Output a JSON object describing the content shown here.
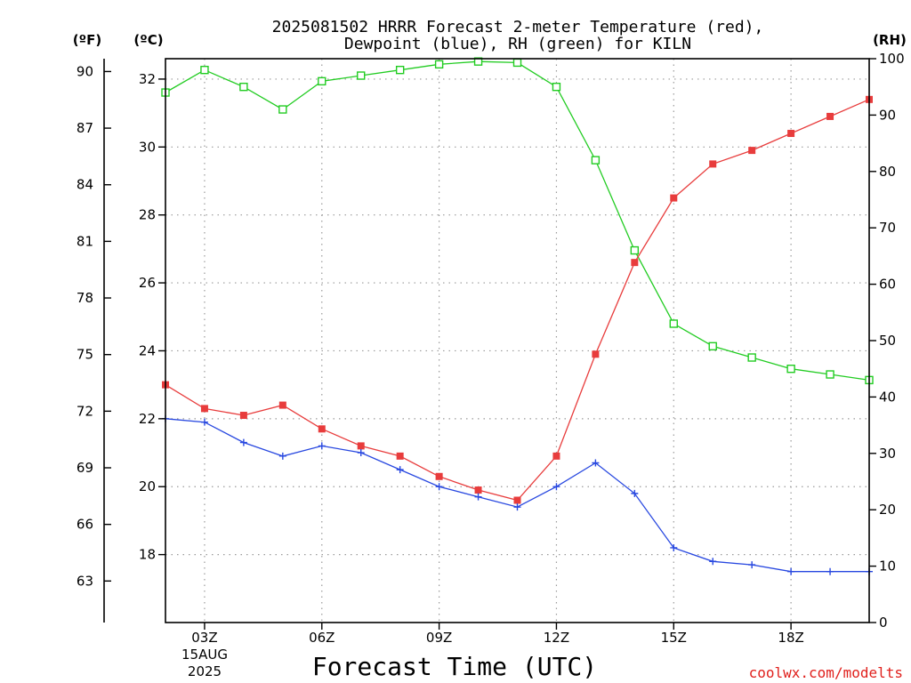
{
  "title_line1": "2025081502 HRRR Forecast 2-meter Temperature (red),",
  "title_line2": "Dewpoint (blue), RH (green) for KILN",
  "unit_f": "(ºF)",
  "unit_c": "(ºC)",
  "unit_rh": "(RH)",
  "date_label": "15AUG",
  "year_label": "2025",
  "credit": "coolwx.com/modelts",
  "colors": {
    "temperature": "#e83c3c",
    "dewpoint": "#2848e0",
    "rh": "#22cc22",
    "grid": "#9a9a9a"
  },
  "chart_data": {
    "type": "line",
    "title": "2025081502 HRRR Forecast 2-meter Temperature (red), Dewpoint (blue), RH (green) for KILN",
    "xlabel": "Forecast Time (UTC)",
    "x_hours": [
      2,
      3,
      4,
      5,
      6,
      7,
      8,
      9,
      10,
      11,
      12,
      13,
      14,
      15,
      16,
      17,
      18,
      19,
      20
    ],
    "x_ticks": [
      {
        "hour": 3,
        "label": "03Z"
      },
      {
        "hour": 6,
        "label": "06Z"
      },
      {
        "hour": 9,
        "label": "09Z"
      },
      {
        "hour": 12,
        "label": "12Z"
      },
      {
        "hour": 15,
        "label": "15Z"
      },
      {
        "hour": 18,
        "label": "18Z"
      }
    ],
    "xlim": [
      2,
      20
    ],
    "y_left_c": {
      "ticks": [
        18,
        20,
        22,
        24,
        26,
        28,
        30,
        32
      ],
      "lim": [
        16.0,
        32.6
      ]
    },
    "y_left_f": {
      "ticks": [
        63,
        66,
        69,
        72,
        75,
        78,
        81,
        84,
        87,
        90
      ]
    },
    "y_right_rh": {
      "ticks": [
        0,
        10,
        20,
        30,
        40,
        50,
        60,
        70,
        80,
        90,
        100
      ],
      "lim": [
        0,
        100
      ]
    },
    "grid": true,
    "series": [
      {
        "name": "Temperature",
        "units": "C",
        "marker": "filled-square",
        "values": [
          23.0,
          22.3,
          22.1,
          22.4,
          21.7,
          21.2,
          20.9,
          20.3,
          19.9,
          19.6,
          20.9,
          23.9,
          26.6,
          28.5,
          29.5,
          29.9,
          30.4,
          30.9,
          31.4
        ]
      },
      {
        "name": "Dewpoint",
        "units": "C",
        "marker": "plus",
        "values": [
          22.0,
          21.9,
          21.3,
          20.9,
          21.2,
          21.0,
          20.5,
          20.0,
          19.7,
          19.4,
          20.0,
          20.7,
          19.8,
          18.2,
          17.8,
          17.7,
          17.5,
          17.5,
          17.5
        ]
      },
      {
        "name": "RH",
        "units": "%",
        "marker": "open-square",
        "values": [
          94,
          98,
          95,
          91,
          96,
          97,
          98,
          99,
          99.5,
          99.3,
          95,
          82,
          66,
          53,
          49,
          47,
          45,
          44,
          43
        ]
      }
    ]
  }
}
